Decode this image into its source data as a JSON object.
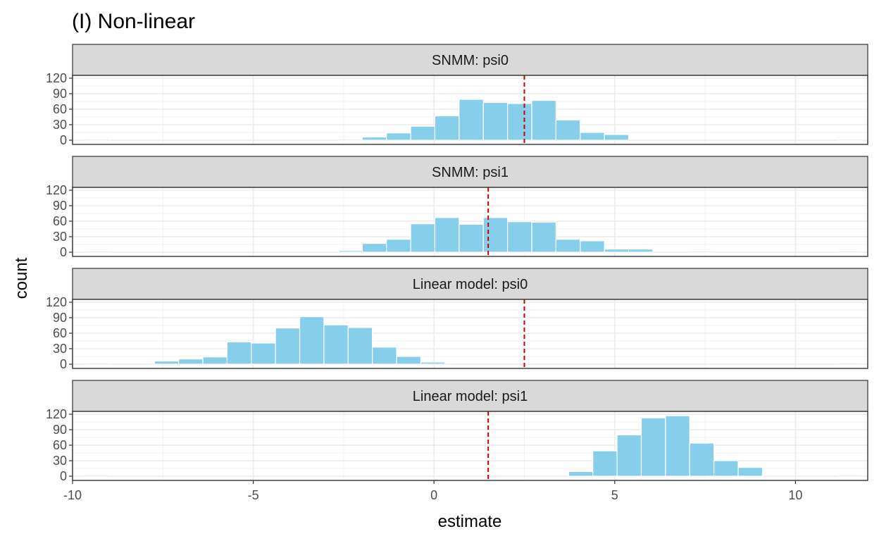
{
  "chart_data": {
    "type": "bar",
    "subtype": "faceted-histogram",
    "title": "(I) Non-linear",
    "xlabel": "estimate",
    "ylabel": "count",
    "xlim": [
      -10,
      12
    ],
    "x_ticks": [
      -10,
      -5,
      0,
      5,
      10
    ],
    "y_ticks": [
      0,
      30,
      60,
      90,
      120
    ],
    "ylim": [
      0,
      120
    ],
    "bin_width": 0.67,
    "fill_color": "#87CEEB",
    "reference_line_color": "#CC0000",
    "strip_fill": "#D9D9D9",
    "grid": true,
    "legend": "none",
    "panels": [
      {
        "label": "SNMM: psi0",
        "reference_line": 2.5,
        "bins": [
          {
            "x": -9.3,
            "count": 0
          },
          {
            "x": -2.3,
            "count": 1
          },
          {
            "x": -1.65,
            "count": 6
          },
          {
            "x": -0.98,
            "count": 14
          },
          {
            "x": -0.31,
            "count": 27
          },
          {
            "x": 0.36,
            "count": 47
          },
          {
            "x": 1.03,
            "count": 79
          },
          {
            "x": 1.7,
            "count": 73
          },
          {
            "x": 2.37,
            "count": 71
          },
          {
            "x": 3.04,
            "count": 77
          },
          {
            "x": 3.71,
            "count": 39
          },
          {
            "x": 4.38,
            "count": 15
          },
          {
            "x": 5.05,
            "count": 11
          },
          {
            "x": 11.5,
            "count": 0
          }
        ]
      },
      {
        "label": "SNMM: psi1",
        "reference_line": 1.5,
        "bins": [
          {
            "x": -9.3,
            "count": 0
          },
          {
            "x": -2.3,
            "count": 3
          },
          {
            "x": -1.65,
            "count": 17
          },
          {
            "x": -0.98,
            "count": 25
          },
          {
            "x": -0.31,
            "count": 55
          },
          {
            "x": 0.36,
            "count": 67
          },
          {
            "x": 1.03,
            "count": 54
          },
          {
            "x": 1.7,
            "count": 67
          },
          {
            "x": 2.37,
            "count": 59
          },
          {
            "x": 3.04,
            "count": 58
          },
          {
            "x": 3.71,
            "count": 25
          },
          {
            "x": 4.38,
            "count": 22
          },
          {
            "x": 5.05,
            "count": 6
          },
          {
            "x": 5.72,
            "count": 6
          },
          {
            "x": 7.4,
            "count": 1
          },
          {
            "x": 11.5,
            "count": 0
          }
        ]
      },
      {
        "label": "Linear model: psi0",
        "reference_line": 2.5,
        "bins": [
          {
            "x": -9.3,
            "count": 0
          },
          {
            "x": -7.4,
            "count": 6
          },
          {
            "x": -6.73,
            "count": 10
          },
          {
            "x": -6.06,
            "count": 14
          },
          {
            "x": -5.39,
            "count": 43
          },
          {
            "x": -4.72,
            "count": 41
          },
          {
            "x": -4.05,
            "count": 70
          },
          {
            "x": -3.38,
            "count": 92
          },
          {
            "x": -2.71,
            "count": 76
          },
          {
            "x": -2.04,
            "count": 71
          },
          {
            "x": -1.37,
            "count": 33
          },
          {
            "x": -0.7,
            "count": 15
          },
          {
            "x": -0.03,
            "count": 4
          },
          {
            "x": 11.5,
            "count": 0
          }
        ]
      },
      {
        "label": "Linear model: psi1",
        "reference_line": 1.5,
        "bins": [
          {
            "x": -9.3,
            "count": 0
          },
          {
            "x": 4.06,
            "count": 9
          },
          {
            "x": 4.73,
            "count": 49
          },
          {
            "x": 5.4,
            "count": 80
          },
          {
            "x": 6.07,
            "count": 113
          },
          {
            "x": 6.74,
            "count": 117
          },
          {
            "x": 7.41,
            "count": 64
          },
          {
            "x": 8.08,
            "count": 30
          },
          {
            "x": 8.75,
            "count": 17
          },
          {
            "x": 11.5,
            "count": 0
          }
        ]
      }
    ]
  }
}
